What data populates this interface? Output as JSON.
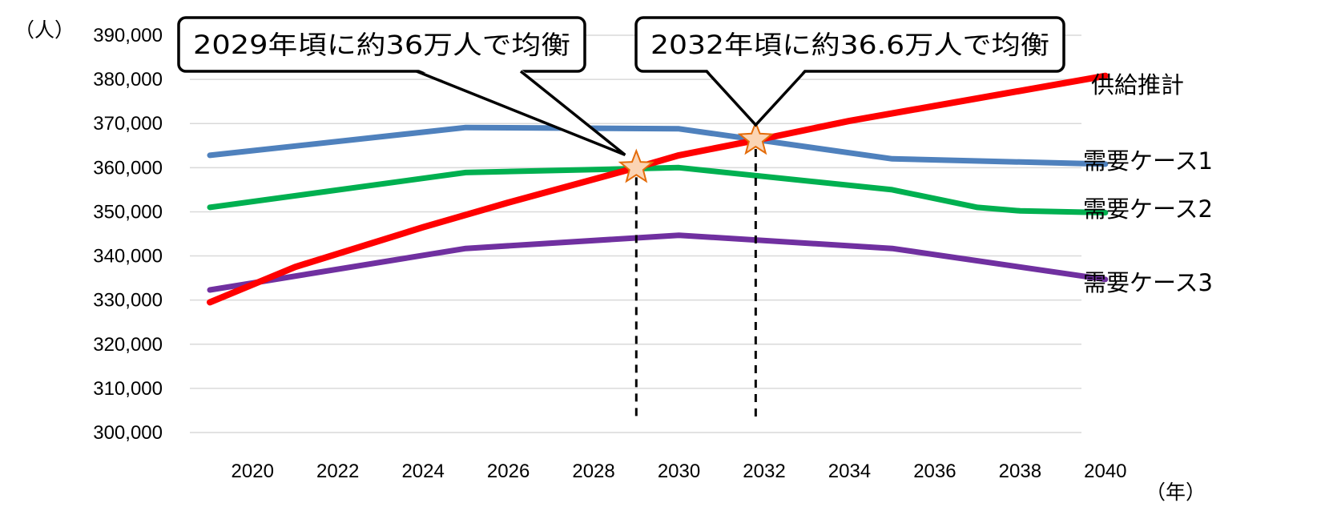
{
  "chart_data": {
    "type": "line",
    "title": "",
    "xlabel": "",
    "ylabel": "",
    "y_unit": "（人）",
    "x_unit": "（年）",
    "ylim": [
      300000,
      390000
    ],
    "y_ticks": [
      300000,
      310000,
      320000,
      330000,
      340000,
      350000,
      360000,
      370000,
      380000,
      390000
    ],
    "y_tick_labels": [
      "300,000",
      "310,000",
      "320,000",
      "330,000",
      "340,000",
      "350,000",
      "360,000",
      "370,000",
      "380,000",
      "390,000"
    ],
    "xlim": [
      2018,
      2040
    ],
    "x_ticks": [
      2020,
      2022,
      2024,
      2026,
      2028,
      2030,
      2032,
      2034,
      2036,
      2038,
      2040
    ],
    "x_tick_labels": [
      "2020",
      "2022",
      "2024",
      "2026",
      "2028",
      "2030",
      "2032",
      "2034",
      "2036",
      "2038",
      "2040"
    ],
    "grid": true,
    "series": [
      {
        "name": "需要ケース1",
        "color": "#4f81bd",
        "x": [
          2019,
          2025,
          2030,
          2035,
          2040
        ],
        "y": [
          362800,
          369100,
          368800,
          362000,
          360800
        ]
      },
      {
        "name": "需要ケース2",
        "color": "#00b050",
        "x": [
          2019,
          2025,
          2030,
          2035,
          2037,
          2038,
          2040
        ],
        "y": [
          351000,
          358900,
          360000,
          355000,
          351000,
          350200,
          349800
        ]
      },
      {
        "name": "需要ケース3",
        "color": "#7030a0",
        "x": [
          2019,
          2025,
          2030,
          2035,
          2040
        ],
        "y": [
          332300,
          341700,
          344700,
          341700,
          334700
        ]
      },
      {
        "name": "供給推計",
        "color": "#ff0000",
        "x": [
          2019,
          2021,
          2024,
          2026,
          2029,
          2030,
          2032,
          2034,
          2036,
          2040
        ],
        "y": [
          329500,
          337500,
          346500,
          352100,
          360000,
          362800,
          366600,
          370600,
          374000,
          380800
        ]
      }
    ],
    "markers": [
      {
        "x": 2029,
        "y": 360000
      },
      {
        "x": 2031.8,
        "y": 366400
      }
    ],
    "annotations": [
      {
        "text": "2029年頃に約36万人で均衡",
        "target_index": 0
      },
      {
        "text": "2032年頃に約36.6万人で均衡",
        "target_index": 1
      }
    ]
  }
}
